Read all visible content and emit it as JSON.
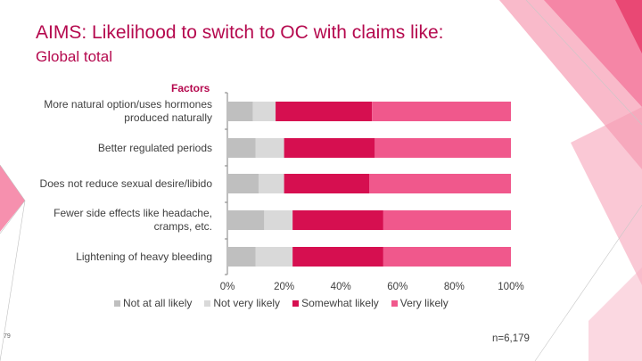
{
  "slide": {
    "title": "AIMS: Likelihood to switch to OC with claims like:",
    "subtitle": "Global total",
    "page_number": "79",
    "footnote": "n=6,179"
  },
  "chart_data": {
    "type": "bar",
    "orientation": "horizontal",
    "stacked": true,
    "axis_title": "Factors",
    "categories": [
      "More natural option/uses hormones produced naturally",
      "Better regulated periods",
      "Does not reduce sexual desire/libido",
      "Fewer side effects like headache, cramps, etc.",
      "Lightening of heavy bleeding"
    ],
    "category_lines": [
      [
        "More natural option/uses hormones",
        "produced naturally"
      ],
      [
        "Better regulated periods"
      ],
      [
        "Does not reduce sexual desire/libido"
      ],
      [
        "Fewer side effects like headache,",
        "cramps, etc."
      ],
      [
        "Lightening of heavy bleeding"
      ]
    ],
    "series": [
      {
        "name": "Not at all likely",
        "color": "#bfbfbf",
        "values": [
          9,
          10,
          11,
          13,
          10
        ]
      },
      {
        "name": "Not very likely",
        "color": "#d9d9d9",
        "values": [
          8,
          10,
          9,
          10,
          13
        ]
      },
      {
        "name": "Somewhat likely",
        "color": "#d60f50",
        "values": [
          34,
          32,
          30,
          32,
          32
        ]
      },
      {
        "name": "Very likely",
        "color": "#f0588c",
        "values": [
          49,
          48,
          50,
          45,
          45
        ]
      }
    ],
    "xlim": [
      0,
      100
    ],
    "xticks": [
      "0%",
      "20%",
      "40%",
      "60%",
      "80%",
      "100%"
    ],
    "grid": false,
    "legend_position": "bottom"
  }
}
